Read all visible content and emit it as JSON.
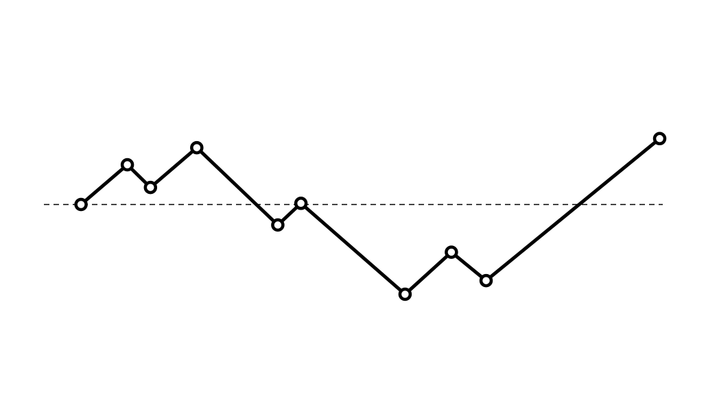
{
  "chart_data": {
    "type": "line",
    "title": "",
    "xlabel": "",
    "ylabel": "",
    "x": [
      1,
      3,
      4,
      6,
      9.5,
      10.5,
      15,
      17,
      18.5,
      26
    ],
    "values": [
      0,
      1.75,
      0.75,
      2.5,
      -0.9,
      0.05,
      -3.95,
      -2.1,
      -3.35,
      2.9
    ],
    "baseline": 0,
    "xlim": [
      -2.5,
      28
    ],
    "ylim": [
      -9,
      9
    ],
    "grid": false,
    "legend": "none",
    "line_color": "#000000",
    "marker_fill": "#ffffff",
    "baseline_color": "#000000"
  }
}
